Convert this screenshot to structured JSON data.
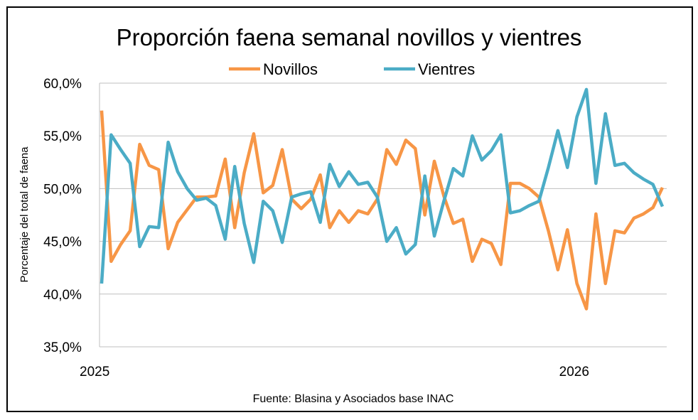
{
  "chart_data": {
    "type": "line",
    "title": "Proporción faena semanal novillos y vientres",
    "ylabel": "Porcentaje del total de faena",
    "xlabel": "",
    "source": "Fuente: Blasina y Asociados base INAC",
    "ylim": [
      35,
      60
    ],
    "yticks": [
      "35,0%",
      "40,0%",
      "45,0%",
      "50,0%",
      "55,0%",
      "60,0%"
    ],
    "xtick_labels": [
      {
        "label": "2025",
        "index": 0
      },
      {
        "label": "2026",
        "index": 50
      }
    ],
    "grid": true,
    "legend": "top",
    "series": [
      {
        "name": "Novillos",
        "color": "#F79646",
        "values": [
          57.4,
          43.1,
          44.7,
          46.0,
          54.2,
          52.2,
          51.8,
          44.3,
          46.8,
          48.0,
          49.2,
          49.2,
          49.3,
          52.8,
          46.3,
          51.5,
          55.2,
          49.6,
          50.3,
          53.7,
          49.0,
          48.1,
          49.0,
          51.3,
          46.3,
          47.9,
          46.8,
          47.9,
          47.6,
          49.0,
          53.7,
          52.3,
          54.6,
          53.8,
          47.5,
          52.6,
          49.3,
          46.7,
          47.1,
          43.1,
          45.2,
          44.8,
          42.8,
          50.5,
          50.5,
          50.0,
          49.2,
          46.0,
          42.3,
          46.1,
          41.0,
          38.6,
          47.6,
          41.0,
          46.0,
          45.8,
          47.2,
          47.6,
          48.2,
          50.1
        ]
      },
      {
        "name": "Vientres",
        "color": "#4BACC6",
        "values": [
          41.0,
          55.1,
          53.7,
          52.4,
          44.5,
          46.4,
          46.3,
          54.4,
          51.6,
          50.0,
          48.9,
          49.1,
          48.4,
          45.2,
          52.1,
          46.7,
          43.0,
          48.8,
          47.9,
          44.9,
          49.2,
          49.5,
          49.7,
          46.8,
          52.3,
          50.2,
          51.6,
          50.4,
          50.6,
          49.2,
          45.0,
          46.3,
          43.8,
          44.7,
          51.2,
          45.5,
          48.8,
          51.9,
          51.2,
          55.0,
          52.7,
          53.6,
          55.1,
          47.7,
          47.9,
          48.4,
          48.8,
          52.0,
          55.5,
          52.0,
          56.8,
          59.4,
          50.5,
          57.1,
          52.2,
          52.4,
          51.5,
          50.9,
          50.4,
          48.3
        ]
      }
    ]
  }
}
